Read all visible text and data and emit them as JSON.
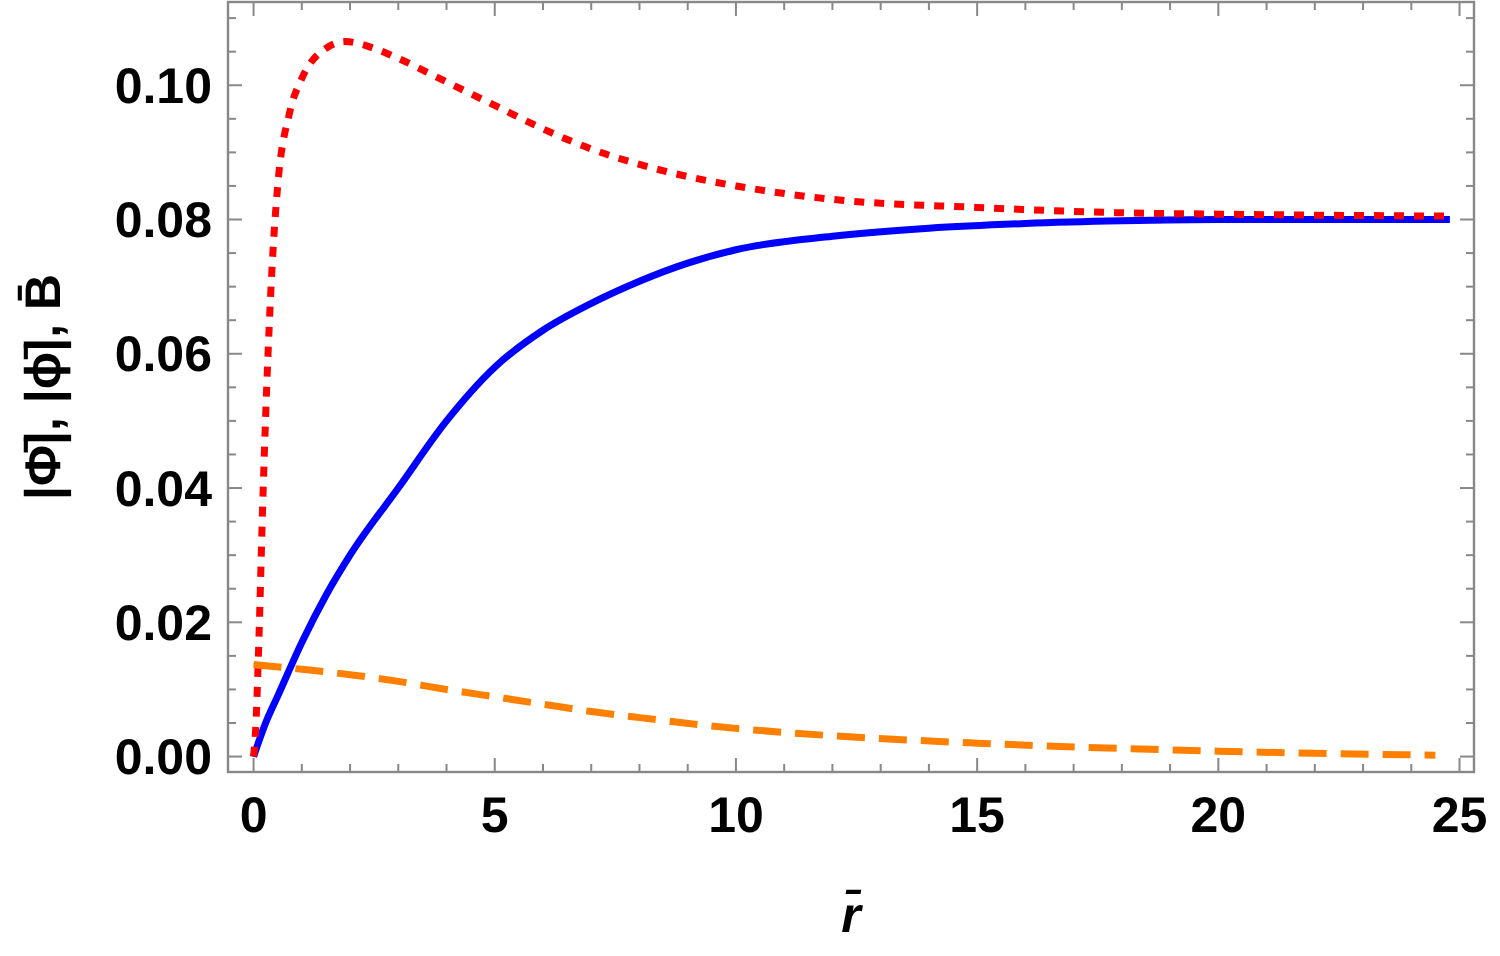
{
  "chart_data": {
    "type": "line",
    "xlabel": "r̄",
    "ylabel": "|Φ̄|, |ϕ̄|, B̄",
    "xlim": [
      -0.53,
      25.3
    ],
    "ylim": [
      -0.0023,
      0.1124
    ],
    "xticks": [
      0,
      {
        "value": 1,
        "label": null
      },
      {
        "value": 2,
        "label": null
      },
      {
        "value": 3,
        "label": null
      },
      {
        "value": 4,
        "label": null
      },
      5,
      {
        "value": 6,
        "label": null
      },
      {
        "value": 7,
        "label": null
      },
      {
        "value": 8,
        "label": null
      },
      {
        "value": 9,
        "label": null
      },
      10,
      {
        "value": 11,
        "label": null
      },
      {
        "value": 12,
        "label": null
      },
      {
        "value": 13,
        "label": null
      },
      {
        "value": 14,
        "label": null
      },
      15,
      {
        "value": 16,
        "label": null
      },
      {
        "value": 17,
        "label": null
      },
      {
        "value": 18,
        "label": null
      },
      {
        "value": 19,
        "label": null
      },
      20,
      {
        "value": 21,
        "label": null
      },
      {
        "value": 22,
        "label": null
      },
      {
        "value": 23,
        "label": null
      },
      {
        "value": 24,
        "label": null
      },
      25
    ],
    "yticks": [
      {
        "value": 0,
        "label": "0.00"
      },
      {
        "value": 0.005,
        "label": null
      },
      {
        "value": 0.01,
        "label": null
      },
      {
        "value": 0.015,
        "label": null
      },
      {
        "value": 0.02,
        "label": "0.02"
      },
      {
        "value": 0.025,
        "label": null
      },
      {
        "value": 0.03,
        "label": null
      },
      {
        "value": 0.035,
        "label": null
      },
      {
        "value": 0.04,
        "label": "0.04"
      },
      {
        "value": 0.045,
        "label": null
      },
      {
        "value": 0.05,
        "label": null
      },
      {
        "value": 0.055,
        "label": null
      },
      {
        "value": 0.06,
        "label": "0.06"
      },
      {
        "value": 0.065,
        "label": null
      },
      {
        "value": 0.07,
        "label": null
      },
      {
        "value": 0.075,
        "label": null
      },
      {
        "value": 0.08,
        "label": "0.08"
      },
      {
        "value": 0.085,
        "label": null
      },
      {
        "value": 0.09,
        "label": null
      },
      {
        "value": 0.095,
        "label": null
      },
      {
        "value": 0.1,
        "label": "0.10"
      },
      {
        "value": 0.105,
        "label": null
      },
      {
        "value": 0.11,
        "label": null
      }
    ],
    "grid": false,
    "series": [
      {
        "color": "#0000ff",
        "line_style": "solid",
        "x": [
          0,
          0.25,
          0.5,
          1,
          1.5,
          2,
          3,
          4,
          5,
          6,
          7,
          8,
          9,
          10,
          12,
          14,
          16,
          18,
          20,
          24.8
        ],
        "values": [
          0,
          0.005,
          0.009,
          0.017,
          0.024,
          0.03,
          0.04,
          0.05,
          0.058,
          0.0635,
          0.0675,
          0.0708,
          0.0735,
          0.0755,
          0.0775,
          0.0787,
          0.0794,
          0.0798,
          0.08,
          0.08
        ]
      },
      {
        "color": "#ff0000",
        "line_style": "dotted",
        "x": [
          0,
          0.05,
          0.1,
          0.2,
          0.3,
          0.4,
          0.5,
          0.75,
          1,
          1.5,
          1.9,
          2.5,
          3,
          4,
          5,
          6,
          7,
          8,
          9,
          10,
          12,
          15,
          18,
          20,
          24.8
        ],
        "values": [
          0,
          0.005,
          0.015,
          0.04,
          0.06,
          0.075,
          0.085,
          0.096,
          0.101,
          0.1055,
          0.1065,
          0.1055,
          0.104,
          0.1005,
          0.097,
          0.0935,
          0.0905,
          0.0882,
          0.0864,
          0.085,
          0.083,
          0.0818,
          0.081,
          0.0808,
          0.0805
        ]
      },
      {
        "color": "#ff8000",
        "line_style": "dashed",
        "x": [
          0,
          1,
          2,
          3,
          4,
          5,
          6,
          7,
          8,
          10,
          12,
          15,
          18,
          20,
          24.5
        ],
        "values": [
          0.0137,
          0.013,
          0.0122,
          0.0112,
          0.01,
          0.0089,
          0.0078,
          0.0067,
          0.0058,
          0.0042,
          0.0031,
          0.002,
          0.0012,
          0.0008,
          0.0002
        ]
      }
    ]
  }
}
